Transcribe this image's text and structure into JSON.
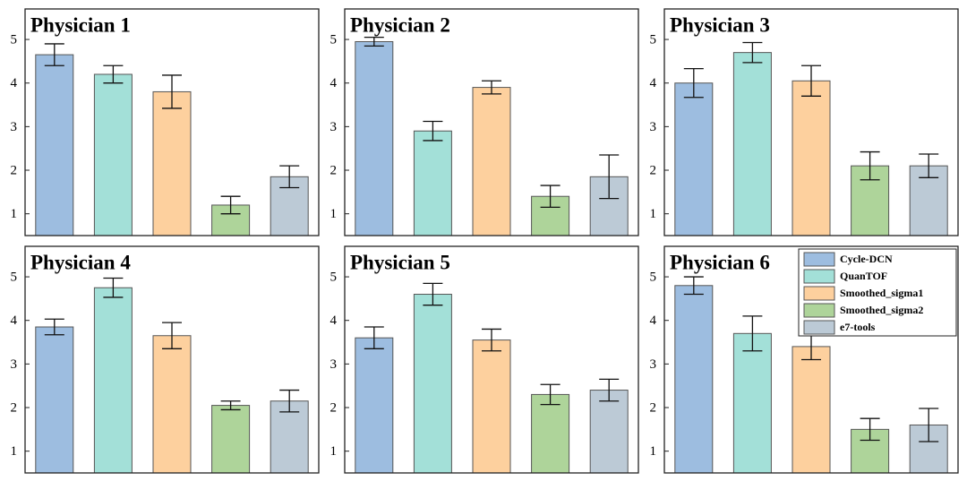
{
  "chart_data": [
    {
      "type": "bar",
      "title": "Physician 1",
      "values": [
        4.65,
        4.2,
        3.8,
        1.2,
        1.85
      ],
      "errors": [
        0.25,
        0.2,
        0.38,
        0.2,
        0.25
      ],
      "colors": [
        "#9dbde0",
        "#a3e0d8",
        "#fdd09e",
        "#aed49a",
        "#bccad6"
      ],
      "ylim": [
        0.5,
        5.7
      ],
      "yticks": [
        1,
        2,
        3,
        4,
        5
      ]
    },
    {
      "type": "bar",
      "title": "Physician 2",
      "values": [
        4.95,
        2.9,
        3.9,
        1.4,
        1.85
      ],
      "errors": [
        0.1,
        0.22,
        0.15,
        0.25,
        0.5
      ],
      "colors": [
        "#9dbde0",
        "#a3e0d8",
        "#fdd09e",
        "#aed49a",
        "#bccad6"
      ],
      "ylim": [
        0.5,
        5.7
      ],
      "yticks": [
        1,
        2,
        3,
        4,
        5
      ]
    },
    {
      "type": "bar",
      "title": "Physician 3",
      "values": [
        4.0,
        4.7,
        4.05,
        2.1,
        2.1
      ],
      "errors": [
        0.33,
        0.23,
        0.35,
        0.32,
        0.27
      ],
      "colors": [
        "#9dbde0",
        "#a3e0d8",
        "#fdd09e",
        "#aed49a",
        "#bccad6"
      ],
      "ylim": [
        0.5,
        5.7
      ],
      "yticks": [
        1,
        2,
        3,
        4,
        5
      ]
    },
    {
      "type": "bar",
      "title": "Physician 4",
      "values": [
        3.85,
        4.75,
        3.65,
        2.05,
        2.15
      ],
      "errors": [
        0.18,
        0.22,
        0.3,
        0.1,
        0.25
      ],
      "colors": [
        "#9dbde0",
        "#a3e0d8",
        "#fdd09e",
        "#aed49a",
        "#bccad6"
      ],
      "ylim": [
        0.5,
        5.7
      ],
      "yticks": [
        1,
        2,
        3,
        4,
        5
      ]
    },
    {
      "type": "bar",
      "title": "Physician 5",
      "values": [
        3.6,
        4.6,
        3.55,
        2.3,
        2.4
      ],
      "errors": [
        0.25,
        0.25,
        0.25,
        0.23,
        0.25
      ],
      "colors": [
        "#9dbde0",
        "#a3e0d8",
        "#fdd09e",
        "#aed49a",
        "#bccad6"
      ],
      "ylim": [
        0.5,
        5.7
      ],
      "yticks": [
        1,
        2,
        3,
        4,
        5
      ]
    },
    {
      "type": "bar",
      "title": "Physician 6",
      "values": [
        4.8,
        3.7,
        3.4,
        1.5,
        1.6
      ],
      "errors": [
        0.2,
        0.4,
        0.3,
        0.25,
        0.38
      ],
      "colors": [
        "#9dbde0",
        "#a3e0d8",
        "#fdd09e",
        "#aed49a",
        "#bccad6"
      ],
      "ylim": [
        0.5,
        5.7
      ],
      "yticks": [
        1,
        2,
        3,
        4,
        5
      ],
      "legend": "upper right",
      "legend_labels": [
        "Cycle-DCN",
        "QuanTOF",
        "Smoothed_sigma1",
        "Smoothed_sigma2",
        "e7-tools"
      ]
    }
  ]
}
